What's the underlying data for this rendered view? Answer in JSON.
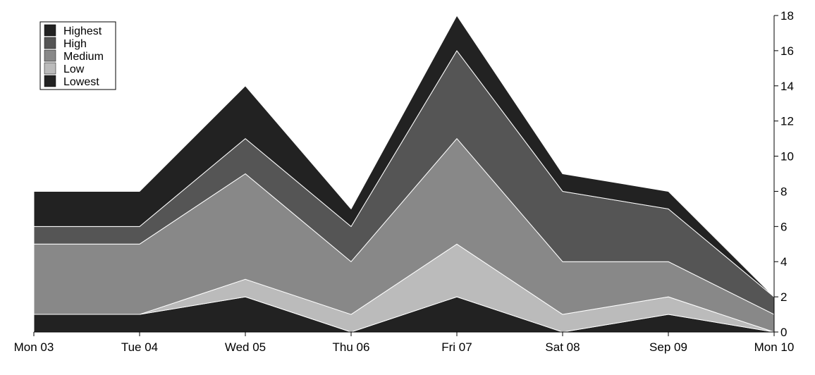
{
  "chart_data": {
    "type": "area",
    "stacked": true,
    "categories": [
      "Mon 03",
      "Tue 04",
      "Wed 05",
      "Thu 06",
      "Fri 07",
      "Sat 08",
      "Sep 09",
      "Mon 10"
    ],
    "series": [
      {
        "name": "Lowest",
        "color": "#222222",
        "values": [
          1,
          1,
          2,
          0,
          2,
          0,
          1,
          0
        ]
      },
      {
        "name": "Low",
        "color": "#bbbbbb",
        "values": [
          0,
          0,
          1,
          1,
          3,
          1,
          1,
          0
        ]
      },
      {
        "name": "Medium",
        "color": "#888888",
        "values": [
          4,
          4,
          6,
          3,
          6,
          3,
          2,
          1
        ]
      },
      {
        "name": "High",
        "color": "#555555",
        "values": [
          1,
          1,
          2,
          2,
          5,
          4,
          3,
          1
        ]
      },
      {
        "name": "Highest",
        "color": "#222222",
        "values": [
          2,
          2,
          3,
          1,
          2,
          1,
          1,
          0
        ]
      }
    ],
    "legend_order": [
      "Highest",
      "High",
      "Medium",
      "Low",
      "Lowest"
    ],
    "y_ticks": [
      0,
      2,
      4,
      6,
      8,
      10,
      12,
      14,
      16,
      18
    ],
    "ylim": [
      0,
      18
    ],
    "y_axis_side": "right",
    "legend_position": "top-left",
    "grid": false
  }
}
